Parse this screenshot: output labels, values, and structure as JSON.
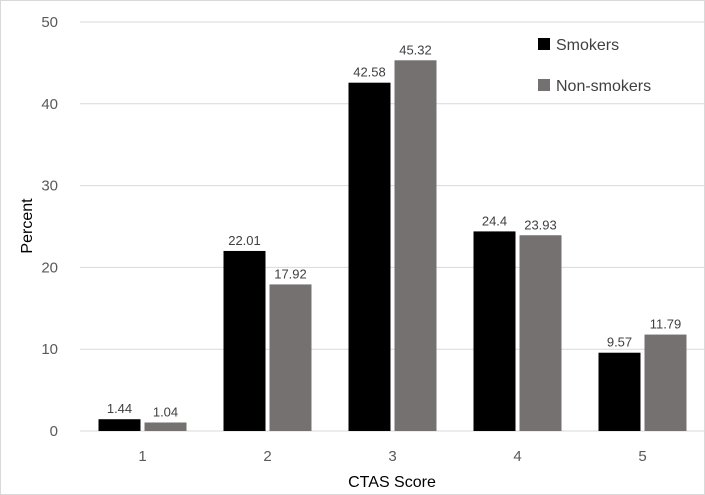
{
  "chart_data": {
    "type": "bar",
    "categories": [
      "1",
      "2",
      "3",
      "4",
      "5"
    ],
    "series": [
      {
        "name": "Smokers",
        "values": [
          1.44,
          22.01,
          42.58,
          24.4,
          9.57
        ],
        "color": "#000000"
      },
      {
        "name": "Non-smokers",
        "values": [
          1.04,
          17.92,
          45.32,
          23.93,
          11.79
        ],
        "color": "#767171"
      }
    ],
    "xlabel": "CTAS Score",
    "ylabel": "Percent",
    "ylim": [
      0,
      50
    ],
    "yticks": [
      "0",
      "10",
      "20",
      "30",
      "40",
      "50"
    ],
    "data_labels": [
      [
        "1.44",
        "22.01",
        "42.58",
        "24.4",
        "9.57"
      ],
      [
        "1.04",
        "17.92",
        "45.32",
        "23.93",
        "11.79"
      ]
    ],
    "grid": true,
    "grid_color": "#d9d9d9",
    "legend_position": "top-right"
  }
}
